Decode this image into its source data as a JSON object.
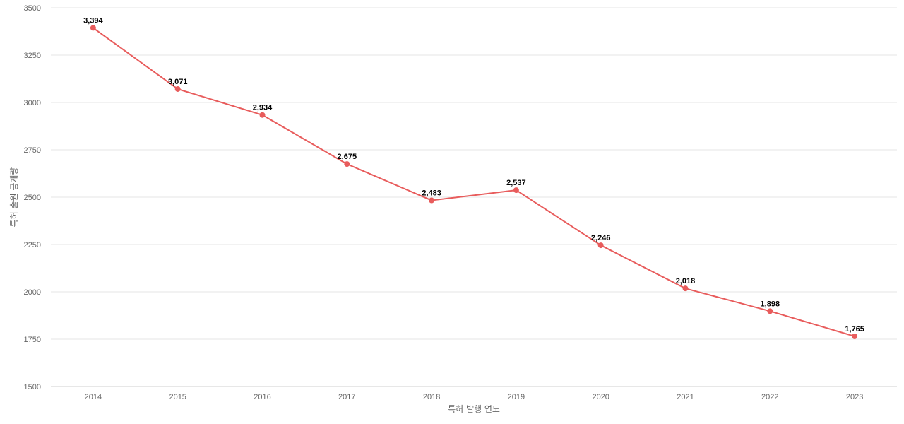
{
  "chart_data": {
    "type": "line",
    "title": "",
    "xlabel": "특허 발행 연도",
    "ylabel": "특허 출원 공개량",
    "categories": [
      "2014",
      "2015",
      "2016",
      "2017",
      "2018",
      "2019",
      "2020",
      "2021",
      "2022",
      "2023"
    ],
    "series": [
      {
        "values": [
          3394,
          3071,
          2934,
          2675,
          2483,
          2537,
          2246,
          2018,
          1898,
          1765
        ],
        "labels": [
          "3,394",
          "3,071",
          "2,934",
          "2,675",
          "2,483",
          "2,537",
          "2,246",
          "2,018",
          "1,898",
          "1,765"
        ]
      }
    ],
    "ylim": [
      1500,
      3500
    ],
    "yticks": [
      "1500",
      "1750",
      "2000",
      "2250",
      "2500",
      "2750",
      "3000",
      "3250",
      "3500"
    ],
    "grid": true,
    "legend": "none",
    "colors": {
      "series": "#e85c5c"
    }
  }
}
